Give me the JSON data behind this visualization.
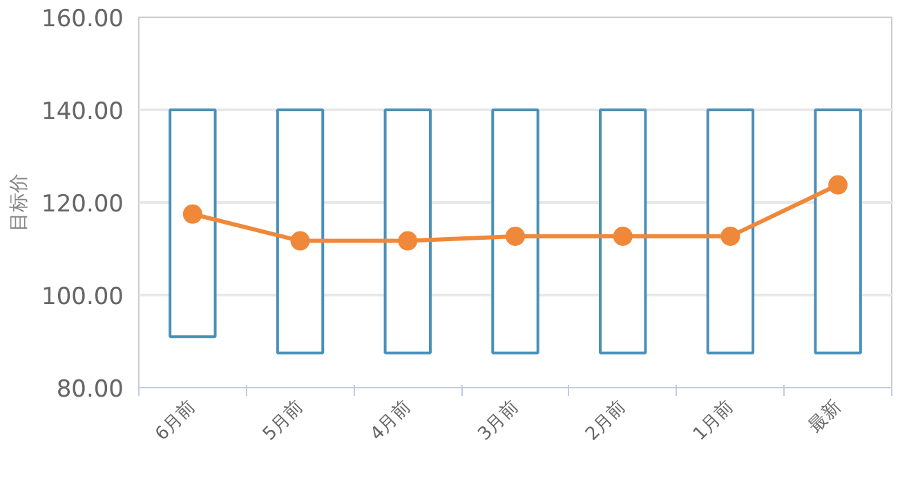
{
  "chart_data": {
    "type": "bar",
    "ylabel": "目标价",
    "categories": [
      "6月前",
      "5月前",
      "4月前",
      "3月前",
      "2月前",
      "1月前",
      "最新"
    ],
    "ylim": [
      80,
      160
    ],
    "yticks": [
      {
        "value": 80,
        "label": "80.00"
      },
      {
        "value": 100,
        "label": "100.00"
      },
      {
        "value": 120,
        "label": "120.00"
      },
      {
        "value": 140,
        "label": "140.00"
      },
      {
        "value": 160,
        "label": "160.00"
      }
    ],
    "grid": "y",
    "series": [
      {
        "color": "#4a90b8",
        "base": [
          91,
          87.5,
          87.5,
          87.5,
          87.5,
          87.5,
          87.5
        ],
        "values": [
          49,
          52.5,
          52.5,
          52.5,
          52.5,
          52.5,
          52.5
        ]
      },
      {
        "type": "line",
        "color": "#f0883a",
        "marker": "circle",
        "line_style": "solid",
        "values": [
          117.5,
          111.7,
          111.7,
          112.7,
          112.7,
          112.7,
          123.8
        ]
      }
    ]
  }
}
